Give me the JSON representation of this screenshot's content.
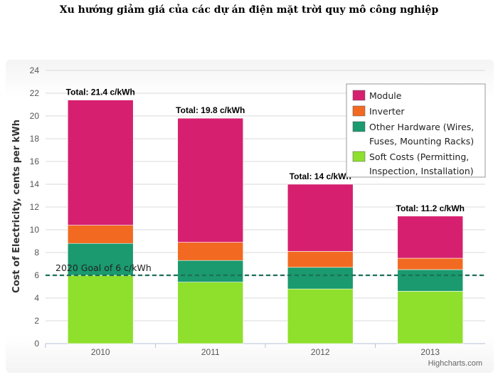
{
  "page": {
    "title": "Xu hướng giảm giá của các dự án điện mặt trời quy mô công nghiệp"
  },
  "chart_data": {
    "type": "bar",
    "stacked": true,
    "categories": [
      "2010",
      "2011",
      "2012",
      "2013"
    ],
    "series": [
      {
        "name": "Soft Costs (Permitting, Inspection, Installation)",
        "legend_lines": [
          "Soft Costs (Permitting,",
          "Inspection, Installation)"
        ],
        "color": "#8ee02c",
        "values": [
          6.0,
          5.4,
          4.8,
          4.6
        ]
      },
      {
        "name": "Other Hardware (Wires, Fuses, Mounting Racks)",
        "legend_lines": [
          "Other Hardware (Wires,",
          "Fuses, Mounting Racks)"
        ],
        "color": "#1a9a6e",
        "values": [
          2.8,
          1.9,
          1.9,
          1.9
        ]
      },
      {
        "name": "Inverter",
        "legend_lines": [
          "Inverter"
        ],
        "color": "#f26a21",
        "values": [
          1.6,
          1.6,
          1.4,
          1.0
        ]
      },
      {
        "name": "Module",
        "legend_lines": [
          "Module"
        ],
        "color": "#d6206f",
        "values": [
          11.0,
          10.9,
          5.9,
          3.7
        ]
      }
    ],
    "totals": [
      "Total: 21.4 c/kWh",
      "Total: 19.8 c/kWh",
      "Total: 14 c/kWh",
      "Total: 11.2 c/kWh"
    ],
    "ylabel": "Cost of Electricity, cents per kWh",
    "ylim": [
      0,
      24
    ],
    "yticks": [
      0,
      2,
      4,
      6,
      8,
      10,
      12,
      14,
      16,
      18,
      20,
      22,
      24
    ],
    "grid": true,
    "legend_position": "top-right",
    "goal": {
      "value": 6,
      "label": "2020 Goal of 6 c/kWh",
      "color": "#1f6f5a"
    },
    "credit": "Highcharts.com"
  }
}
